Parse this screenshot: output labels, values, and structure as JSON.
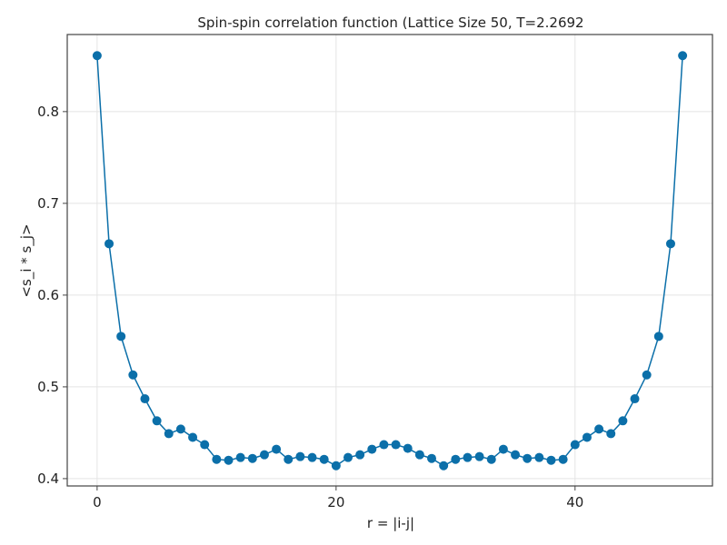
{
  "chart_data": {
    "type": "line",
    "title": "Spin-spin correlation function (Lattice Size 50, T=2.2692",
    "xlabel": "r = |i-j|",
    "ylabel": "<s_i * s_j>",
    "xlim": [
      -2.5,
      51.5
    ],
    "ylim": [
      0.392,
      0.884
    ],
    "x_ticks": [
      0,
      20,
      40
    ],
    "x_tick_labels": [
      "0",
      "20",
      "40"
    ],
    "y_ticks": [
      0.4,
      0.5,
      0.6,
      0.7,
      0.8
    ],
    "y_tick_labels": [
      "0.4",
      "0.5",
      "0.6",
      "0.7",
      "0.8"
    ],
    "grid": true,
    "legend": "none",
    "series": [
      {
        "color": "#0b6fa9",
        "marker": "circle",
        "x": [
          0,
          1,
          2,
          3,
          4,
          5,
          6,
          7,
          8,
          9,
          10,
          11,
          12,
          13,
          14,
          15,
          16,
          17,
          18,
          19,
          20,
          21,
          22,
          23,
          24,
          25,
          26,
          27,
          28,
          29,
          30,
          31,
          32,
          33,
          34,
          35,
          36,
          37,
          38,
          39,
          40,
          41,
          42,
          43,
          44,
          45,
          46,
          47,
          48,
          49
        ],
        "y": [
          0.861,
          0.656,
          0.555,
          0.513,
          0.487,
          0.463,
          0.449,
          0.454,
          0.445,
          0.437,
          0.421,
          0.42,
          0.423,
          0.422,
          0.426,
          0.432,
          0.421,
          0.424,
          0.423,
          0.421,
          0.414,
          0.423,
          0.426,
          0.432,
          0.437,
          0.437,
          0.433,
          0.426,
          0.422,
          0.414,
          0.421,
          0.423,
          0.424,
          0.421,
          0.432,
          0.426,
          0.422,
          0.423,
          0.42,
          0.421,
          0.437,
          0.445,
          0.454,
          0.449,
          0.463,
          0.487,
          0.513,
          0.555,
          0.656,
          0.861
        ]
      }
    ]
  }
}
